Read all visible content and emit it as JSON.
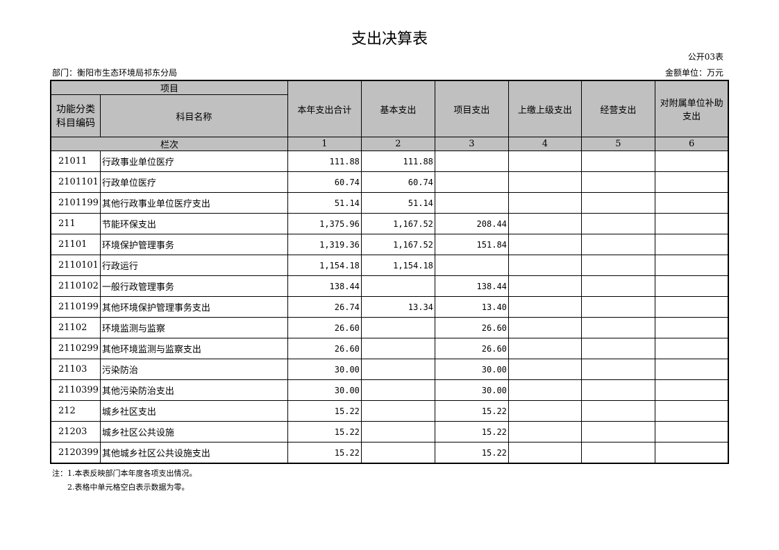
{
  "title": "支出决算表",
  "table_code": "公开03表",
  "department": "部门：衡阳市生态环境局祁东分局",
  "unit": "金额单位：万元",
  "headers": {
    "item": "项目",
    "code": "功能分类科目编码",
    "name": "科目名称",
    "total": "本年支出合计",
    "basic": "基本支出",
    "project": "项目支出",
    "upper": "上缴上级支出",
    "business": "经营支出",
    "subsidy": "对附属单位补助支出",
    "column_index": "栏次",
    "col_nums": [
      "1",
      "2",
      "3",
      "4",
      "5",
      "6"
    ]
  },
  "rows": [
    [
      "21011",
      "行政事业单位医疗",
      "111.88",
      "111.88",
      "",
      "",
      "",
      ""
    ],
    [
      "2101101",
      "行政单位医疗",
      "60.74",
      "60.74",
      "",
      "",
      "",
      ""
    ],
    [
      "2101199",
      "其他行政事业单位医疗支出",
      "51.14",
      "51.14",
      "",
      "",
      "",
      ""
    ],
    [
      "211",
      "节能环保支出",
      "1,375.96",
      "1,167.52",
      "208.44",
      "",
      "",
      ""
    ],
    [
      "21101",
      "环境保护管理事务",
      "1,319.36",
      "1,167.52",
      "151.84",
      "",
      "",
      ""
    ],
    [
      "2110101",
      "行政运行",
      "1,154.18",
      "1,154.18",
      "",
      "",
      "",
      ""
    ],
    [
      "2110102",
      "一般行政管理事务",
      "138.44",
      "",
      "138.44",
      "",
      "",
      ""
    ],
    [
      "2110199",
      "其他环境保护管理事务支出",
      "26.74",
      "13.34",
      "13.40",
      "",
      "",
      ""
    ],
    [
      "21102",
      "环境监测与监察",
      "26.60",
      "",
      "26.60",
      "",
      "",
      ""
    ],
    [
      "2110299",
      "其他环境监测与监察支出",
      "26.60",
      "",
      "26.60",
      "",
      "",
      ""
    ],
    [
      "21103",
      "污染防治",
      "30.00",
      "",
      "30.00",
      "",
      "",
      ""
    ],
    [
      "2110399",
      "其他污染防治支出",
      "30.00",
      "",
      "30.00",
      "",
      "",
      ""
    ],
    [
      "212",
      "城乡社区支出",
      "15.22",
      "",
      "15.22",
      "",
      "",
      ""
    ],
    [
      "21203",
      "城乡社区公共设施",
      "15.22",
      "",
      "15.22",
      "",
      "",
      ""
    ],
    [
      "2120399",
      "其他城乡社区公共设施支出",
      "15.22",
      "",
      "15.22",
      "",
      "",
      ""
    ]
  ],
  "notes": [
    "注：1.本表反映部门本年度各项支出情况。",
    "2.表格中单元格空白表示数据为零。"
  ]
}
